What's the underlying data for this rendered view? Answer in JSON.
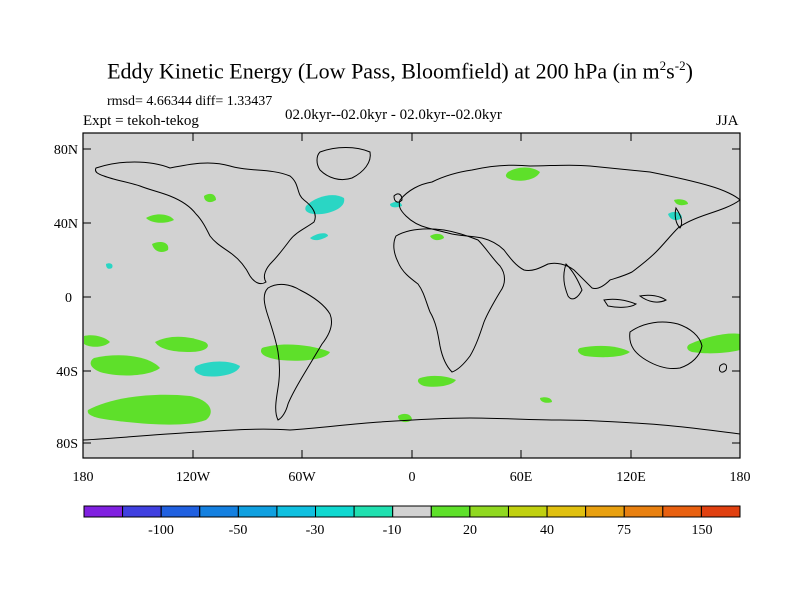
{
  "title": {
    "main": "Eddy Kinetic Energy (Low Pass, Bloomfield) at 200 hPa (in m",
    "sup1": "2",
    "mid": "s",
    "sup2": "-2",
    "end": ")"
  },
  "stats": "rmsd= 4.66344 diff= 1.33437",
  "experiment": "Expt = tekoh-tekog",
  "period": "02.0kyr--02.0kyr - 02.0kyr--02.0kyr",
  "season": "JJA",
  "colors": {
    "ocean_land_fill": "#d2d2d2",
    "coast": "#000000",
    "green": "#5ee02a",
    "cyan": "#2ad6c4"
  },
  "lat_ticks": [
    "80N",
    "40N",
    "0",
    "40S",
    "80S"
  ],
  "lon_ticks": [
    "180",
    "120W",
    "60W",
    "0",
    "60E",
    "120E",
    "180"
  ],
  "colorbar": {
    "colors": [
      "#8020e0",
      "#4040e0",
      "#2060e0",
      "#1480e0",
      "#10a0e0",
      "#10c0e0",
      "#10d8d0",
      "#20e0b0",
      "#d2d2d2",
      "#5ee02a",
      "#90d820",
      "#c0d010",
      "#e0c010",
      "#e8a010",
      "#e88010",
      "#e86010",
      "#e04010"
    ],
    "labels": [
      "-100",
      "-50",
      "-30",
      "-10",
      "20",
      "40",
      "75",
      "150"
    ]
  }
}
